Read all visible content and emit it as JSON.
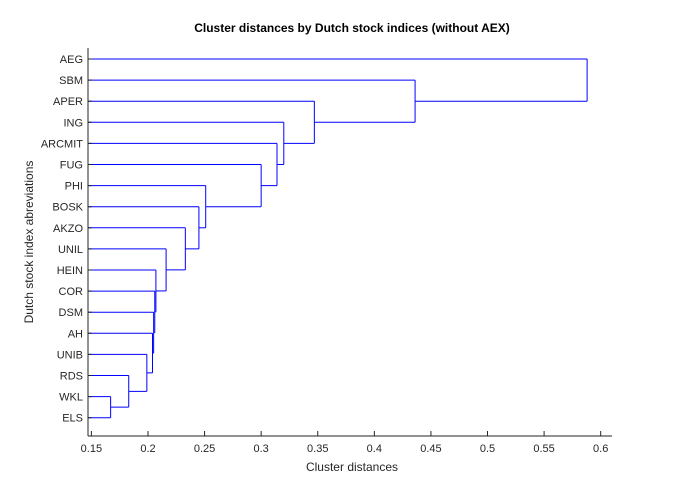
{
  "chart_data": {
    "type": "dendrogram",
    "title": "Cluster distances by Dutch stock indices (without AEX)",
    "xlabel": "Cluster distances",
    "ylabel": "Dutch stock index abreviations",
    "xlim": [
      0.147,
      0.61
    ],
    "xticks": [
      "0.15",
      "0.2",
      "0.25",
      "0.3",
      "0.35",
      "0.4",
      "0.45",
      "0.5",
      "0.55",
      "0.6"
    ],
    "leaves": [
      "AEG",
      "SBM",
      "APER",
      "ING",
      "ARCMIT",
      "FUG",
      "PHI",
      "BOSK",
      "AKZO",
      "UNIL",
      "HEIN",
      "COR",
      "DSM",
      "AH",
      "UNIB",
      "RDS",
      "WKL",
      "ELS"
    ],
    "leaf_distance": 0.147,
    "merges": [
      {
        "left": "WKL",
        "right": "ELS",
        "distance": 0.167
      },
      {
        "left": "RDS",
        "right": "WKL+ELS",
        "distance": 0.183
      },
      {
        "left": "UNIB",
        "right": "RDS+WKL+ELS",
        "distance": 0.199
      },
      {
        "left": "AH",
        "right": "UNIB-group",
        "distance": 0.204
      },
      {
        "left": "DSM",
        "right": "AH-group",
        "distance": 0.205
      },
      {
        "left": "COR",
        "right": "DSM-group",
        "distance": 0.206
      },
      {
        "left": "HEIN",
        "right": "COR-group",
        "distance": 0.207
      },
      {
        "left": "UNIL",
        "right": "HEIN-group",
        "distance": 0.216
      },
      {
        "left": "AKZO",
        "right": "UNIL-group",
        "distance": 0.233
      },
      {
        "left": "BOSK",
        "right": "AKZO-group",
        "distance": 0.245
      },
      {
        "left": "PHI",
        "right": "BOSK-group",
        "distance": 0.251
      },
      {
        "left": "FUG",
        "right": "PHI-group",
        "distance": 0.3
      },
      {
        "left": "ARCMIT",
        "right": "FUG-group",
        "distance": 0.314
      },
      {
        "left": "ING",
        "right": "ARCMIT-group",
        "distance": 0.32
      },
      {
        "left": "APER",
        "right": "ING-group",
        "distance": 0.347
      },
      {
        "left": "SBM",
        "right": "APER-group",
        "distance": 0.436
      },
      {
        "left": "AEG",
        "right": "SBM-group",
        "distance": 0.588
      }
    ],
    "line_color": "#0000ff",
    "grid": false,
    "legend": "none"
  }
}
